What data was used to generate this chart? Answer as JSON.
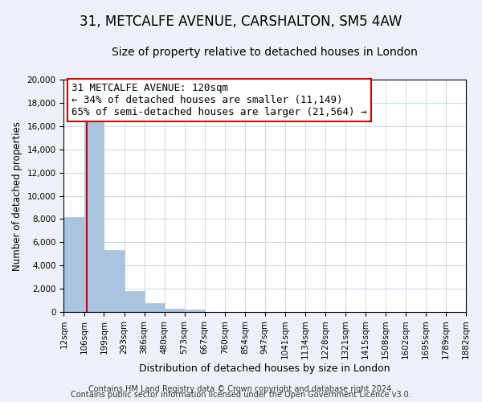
{
  "title": "31, METCALFE AVENUE, CARSHALTON, SM5 4AW",
  "subtitle": "Size of property relative to detached houses in London",
  "xlabel": "Distribution of detached houses by size in London",
  "ylabel": "Number of detached properties",
  "bar_edges": [
    12,
    106,
    199,
    293,
    386,
    480,
    573,
    667,
    760,
    854,
    947,
    1041,
    1134,
    1228,
    1321,
    1415,
    1508,
    1602,
    1695,
    1789,
    1882
  ],
  "bar_heights": [
    8200,
    16600,
    5300,
    1800,
    750,
    300,
    200,
    0,
    0,
    0,
    0,
    0,
    0,
    0,
    0,
    0,
    0,
    0,
    0,
    0
  ],
  "bar_color": "#aac4e0",
  "bar_edge_color": "#aac4e0",
  "property_line_x": 120,
  "property_line_color": "#cc0000",
  "annotation_line1": "31 METCALFE AVENUE: 120sqm",
  "annotation_line2": "← 34% of detached houses are smaller (11,149)",
  "annotation_line3": "65% of semi-detached houses are larger (21,564) →",
  "ylim": [
    0,
    20000
  ],
  "yticks": [
    0,
    2000,
    4000,
    6000,
    8000,
    10000,
    12000,
    14000,
    16000,
    18000,
    20000
  ],
  "xtick_labels": [
    "12sqm",
    "106sqm",
    "199sqm",
    "293sqm",
    "386sqm",
    "480sqm",
    "573sqm",
    "667sqm",
    "760sqm",
    "854sqm",
    "947sqm",
    "1041sqm",
    "1134sqm",
    "1228sqm",
    "1321sqm",
    "1415sqm",
    "1508sqm",
    "1602sqm",
    "1695sqm",
    "1789sqm",
    "1882sqm"
  ],
  "footer_line1": "Contains HM Land Registry data © Crown copyright and database right 2024.",
  "footer_line2": "Contains public sector information licensed under the Open Government Licence v3.0.",
  "bg_color": "#eef2f8",
  "plot_bg_color": "#ffffff",
  "grid_color": "#c8d8ea",
  "title_fontsize": 12,
  "subtitle_fontsize": 10,
  "xlabel_fontsize": 9,
  "ylabel_fontsize": 8.5,
  "tick_fontsize": 7.5,
  "footer_fontsize": 7,
  "annotation_fontsize": 9
}
